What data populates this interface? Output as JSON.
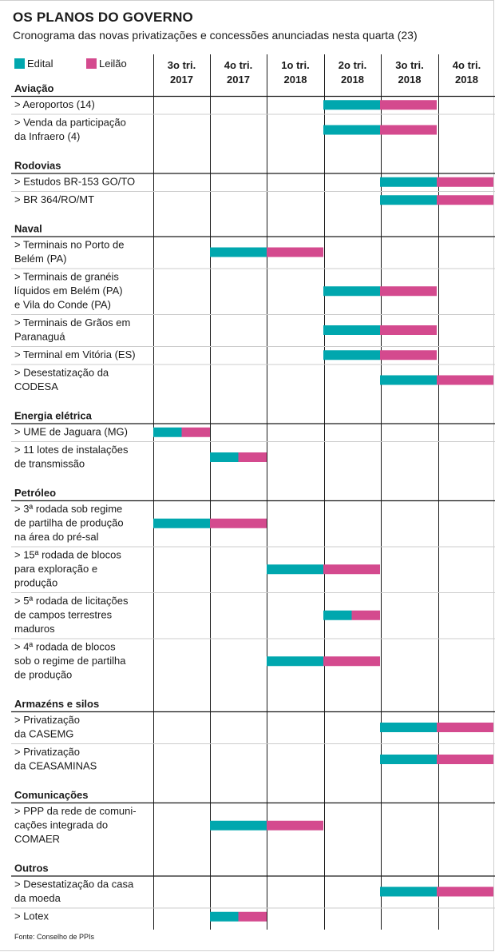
{
  "title": "OS PLANOS DO GOVERNO",
  "subtitle": "Cronograma das novas privatizações e concessões anunciadas nesta quarta (23)",
  "source": "Fonte: Conselho de PPIs",
  "colors": {
    "edital": "#00a7ae",
    "leilao": "#d44a8e",
    "grid": "#1a1a1a",
    "divider": "#cccccc"
  },
  "chart_data": {
    "type": "table",
    "legend": [
      {
        "key": "edital",
        "label": "Edital"
      },
      {
        "key": "leilao",
        "label": "Leilão"
      }
    ],
    "periods": [
      {
        "quarter": "3o tri.",
        "year": "2017"
      },
      {
        "quarter": "4o tri.",
        "year": "2017"
      },
      {
        "quarter": "1o tri.",
        "year": "2018"
      },
      {
        "quarter": "2o tri.",
        "year": "2018"
      },
      {
        "quarter": "3o tri.",
        "year": "2018"
      },
      {
        "quarter": "4o tri.",
        "year": "2018"
      }
    ],
    "groups": [
      {
        "name": "Aviação",
        "items": [
          {
            "label": [
              "> Aeroportos (14)"
            ],
            "edital": [
              3,
              4
            ],
            "leilao": [
              4,
              5
            ]
          },
          {
            "label": [
              "> Venda da participação",
              "da Infraero (4)"
            ],
            "edital": [
              3,
              4
            ],
            "leilao": [
              4,
              5
            ]
          }
        ]
      },
      {
        "name": "Rodovias",
        "items": [
          {
            "label": [
              "> Estudos BR-153 GO/TO"
            ],
            "edital": [
              4,
              5
            ],
            "leilao": [
              5,
              6
            ]
          },
          {
            "label": [
              "> BR 364/RO/MT"
            ],
            "edital": [
              4,
              5
            ],
            "leilao": [
              5,
              6
            ]
          }
        ]
      },
      {
        "name": "Naval",
        "items": [
          {
            "label": [
              "> Terminais no Porto de",
              "Belém (PA)"
            ],
            "edital": [
              1,
              2
            ],
            "leilao": [
              2,
              3
            ]
          },
          {
            "label": [
              "> Terminais de granéis",
              "líquidos em Belém (PA)",
              "e Vila do Conde (PA)"
            ],
            "edital": [
              3,
              4
            ],
            "leilao": [
              4,
              5
            ]
          },
          {
            "label": [
              "> Terminais de Grãos em",
              "Paranaguá"
            ],
            "edital": [
              3,
              4
            ],
            "leilao": [
              4,
              5
            ]
          },
          {
            "label": [
              "> Terminal em Vitória (ES)"
            ],
            "edital": [
              3,
              4
            ],
            "leilao": [
              4,
              5
            ]
          },
          {
            "label": [
              "> Desestatização da",
              "CODESA"
            ],
            "edital": [
              4,
              5
            ],
            "leilao": [
              5,
              6
            ]
          }
        ]
      },
      {
        "name": "Energia elétrica",
        "items": [
          {
            "label": [
              "> UME de Jaguara (MG)"
            ],
            "edital": [
              0,
              0.5
            ],
            "leilao": [
              0.5,
              1
            ]
          },
          {
            "label": [
              "> 11 lotes de instalações",
              "de transmissão"
            ],
            "edital": [
              1,
              1.5
            ],
            "leilao": [
              1.5,
              2
            ]
          }
        ]
      },
      {
        "name": "Petróleo",
        "items": [
          {
            "label": [
              "> 3ª rodada sob regime",
              "de partilha de produção",
              "na área do pré-sal"
            ],
            "edital": [
              0,
              1
            ],
            "leilao": [
              1,
              2
            ]
          },
          {
            "label": [
              "> 15ª rodada de blocos",
              "para exploração e",
              "produção"
            ],
            "edital": [
              2,
              3
            ],
            "leilao": [
              3,
              4
            ]
          },
          {
            "label": [
              "> 5ª rodada de licitações",
              "de campos terrestres",
              "maduros"
            ],
            "edital": [
              3,
              3.5
            ],
            "leilao": [
              3.5,
              4
            ]
          },
          {
            "label": [
              "> 4ª rodada de blocos",
              "sob o regime de partilha",
              "de produção"
            ],
            "edital": [
              2,
              3
            ],
            "leilao": [
              3,
              4
            ]
          }
        ]
      },
      {
        "name": "Armazéns e silos",
        "items": [
          {
            "label": [
              "> Privatização",
              "da CASEMG"
            ],
            "edital": [
              4,
              5
            ],
            "leilao": [
              5,
              6
            ]
          },
          {
            "label": [
              "> Privatização",
              "da CEASAMINAS"
            ],
            "edital": [
              4,
              5
            ],
            "leilao": [
              5,
              6
            ]
          }
        ]
      },
      {
        "name": "Comunicações",
        "items": [
          {
            "label": [
              "> PPP da rede de comuni-",
              "cações integrada do",
              "COMAER"
            ],
            "edital": [
              1,
              2
            ],
            "leilao": [
              2,
              3
            ]
          }
        ]
      },
      {
        "name": "Outros",
        "items": [
          {
            "label": [
              "> Desestatização da casa",
              "da moeda"
            ],
            "edital": [
              4,
              5
            ],
            "leilao": [
              5,
              6
            ]
          },
          {
            "label": [
              "> Lotex"
            ],
            "edital": [
              1,
              1.5
            ],
            "leilao": [
              1.5,
              2
            ]
          }
        ]
      }
    ]
  }
}
